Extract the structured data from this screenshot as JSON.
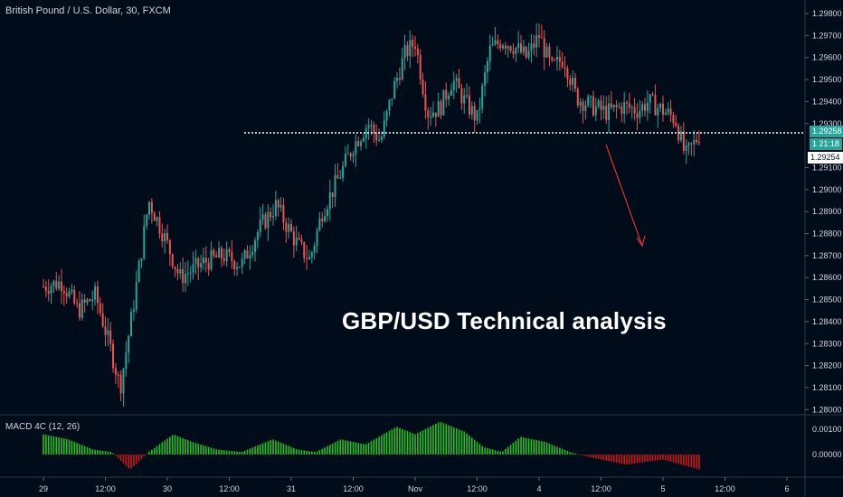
{
  "header": {
    "symbol": "British Pound / U.S. Dollar, 30, FXCM"
  },
  "headline": "GBP/USD Technical analysis",
  "indicator": {
    "label": "MACD 4C (12, 26)",
    "ticks": [
      "0.00100",
      "0.00000"
    ]
  },
  "price_tags": {
    "current": "1.29258",
    "countdown": "1 21:18",
    "prev_close": "1.29254"
  },
  "colors": {
    "background": "#010c1a",
    "up_candle": "#26a69a",
    "down_candle": "#ef5350",
    "macd_positive": "#22c322",
    "macd_negative": "#d01616",
    "arrow": "#e0322c",
    "axis_text": "#d1d4dc"
  },
  "chart_data": {
    "type": "candlestick",
    "title": "British Pound / U.S. Dollar, 30, FXCM",
    "y_axis_ticks": [
      "1.29800",
      "1.29700",
      "1.29600",
      "1.29500",
      "1.29400",
      "1.29300",
      "1.29100",
      "1.29000",
      "1.28900",
      "1.28800",
      "1.28700",
      "1.28600",
      "1.28500",
      "1.28400",
      "1.28300",
      "1.28200",
      "1.28100",
      "1.28000"
    ],
    "x_axis_ticks": [
      "29",
      "12:00",
      "30",
      "12:00",
      "31",
      "12:00",
      "Nov",
      "12:00",
      "4",
      "12:00",
      "5",
      "12:00",
      "6"
    ],
    "ylim": [
      1.2797,
      1.2987
    ],
    "horizontal_level": 1.29258,
    "annotation": "downward arrow projecting toward 1.2873",
    "series": [
      {
        "x_day": 0.0,
        "value": 1.2856
      },
      {
        "x_day": 0.15,
        "value": 1.2858
      },
      {
        "x_day": 0.28,
        "value": 1.2845
      },
      {
        "x_day": 0.42,
        "value": 1.2852
      },
      {
        "x_day": 0.55,
        "value": 1.2826
      },
      {
        "x_day": 0.62,
        "value": 1.281
      },
      {
        "x_day": 0.72,
        "value": 1.2845
      },
      {
        "x_day": 0.85,
        "value": 1.2895
      },
      {
        "x_day": 0.98,
        "value": 1.2878
      },
      {
        "x_day": 1.1,
        "value": 1.286
      },
      {
        "x_day": 1.3,
        "value": 1.2867
      },
      {
        "x_day": 1.45,
        "value": 1.287
      },
      {
        "x_day": 1.6,
        "value": 1.2866
      },
      {
        "x_day": 1.75,
        "value": 1.2883
      },
      {
        "x_day": 1.88,
        "value": 1.2893
      },
      {
        "x_day": 1.95,
        "value": 1.2885
      },
      {
        "x_day": 2.05,
        "value": 1.2875
      },
      {
        "x_day": 2.15,
        "value": 1.2868
      },
      {
        "x_day": 2.25,
        "value": 1.289
      },
      {
        "x_day": 2.38,
        "value": 1.2905
      },
      {
        "x_day": 2.5,
        "value": 1.292
      },
      {
        "x_day": 2.62,
        "value": 1.293
      },
      {
        "x_day": 2.72,
        "value": 1.2922
      },
      {
        "x_day": 2.82,
        "value": 1.2945
      },
      {
        "x_day": 2.92,
        "value": 1.2962
      },
      {
        "x_day": 3.0,
        "value": 1.2967
      },
      {
        "x_day": 3.1,
        "value": 1.2935
      },
      {
        "x_day": 3.2,
        "value": 1.2937
      },
      {
        "x_day": 3.3,
        "value": 1.295
      },
      {
        "x_day": 3.4,
        "value": 1.294
      },
      {
        "x_day": 3.5,
        "value": 1.2932
      },
      {
        "x_day": 3.6,
        "value": 1.2963
      },
      {
        "x_day": 3.7,
        "value": 1.2968
      },
      {
        "x_day": 3.8,
        "value": 1.2965
      },
      {
        "x_day": 3.9,
        "value": 1.296
      },
      {
        "x_day": 4.0,
        "value": 1.297
      },
      {
        "x_day": 4.1,
        "value": 1.2955
      },
      {
        "x_day": 4.2,
        "value": 1.296
      },
      {
        "x_day": 4.3,
        "value": 1.2942
      },
      {
        "x_day": 4.42,
        "value": 1.2938
      },
      {
        "x_day": 4.55,
        "value": 1.2935
      },
      {
        "x_day": 4.68,
        "value": 1.2938
      },
      {
        "x_day": 4.8,
        "value": 1.2936
      },
      {
        "x_day": 4.88,
        "value": 1.294
      },
      {
        "x_day": 5.0,
        "value": 1.2936
      },
      {
        "x_day": 5.1,
        "value": 1.2932
      },
      {
        "x_day": 5.18,
        "value": 1.2915
      },
      {
        "x_day": 5.24,
        "value": 1.292
      },
      {
        "x_day": 5.3,
        "value": 1.29258
      }
    ],
    "macd": [
      {
        "x_day": 0.0,
        "value": 0.0008
      },
      {
        "x_day": 0.2,
        "value": 0.0006
      },
      {
        "x_day": 0.4,
        "value": 0.0002
      },
      {
        "x_day": 0.55,
        "value": 0.0001
      },
      {
        "x_day": 0.7,
        "value": -0.0006
      },
      {
        "x_day": 0.85,
        "value": 0.0001
      },
      {
        "x_day": 1.05,
        "value": 0.0008
      },
      {
        "x_day": 1.2,
        "value": 0.0005
      },
      {
        "x_day": 1.4,
        "value": 0.0002
      },
      {
        "x_day": 1.6,
        "value": 0.0001
      },
      {
        "x_day": 1.85,
        "value": 0.0006
      },
      {
        "x_day": 2.05,
        "value": 0.0002
      },
      {
        "x_day": 2.2,
        "value": 0.0001
      },
      {
        "x_day": 2.4,
        "value": 0.0006
      },
      {
        "x_day": 2.6,
        "value": 0.0004
      },
      {
        "x_day": 2.85,
        "value": 0.0011
      },
      {
        "x_day": 3.0,
        "value": 0.0008
      },
      {
        "x_day": 3.2,
        "value": 0.0013
      },
      {
        "x_day": 3.4,
        "value": 0.0009
      },
      {
        "x_day": 3.55,
        "value": 0.0003
      },
      {
        "x_day": 3.7,
        "value": 0.0001
      },
      {
        "x_day": 3.85,
        "value": 0.0007
      },
      {
        "x_day": 4.05,
        "value": 0.0005
      },
      {
        "x_day": 4.25,
        "value": 0.0001
      },
      {
        "x_day": 4.4,
        "value": -0.0001
      },
      {
        "x_day": 4.7,
        "value": -0.0004
      },
      {
        "x_day": 5.0,
        "value": -0.0002
      },
      {
        "x_day": 5.15,
        "value": -0.0004
      },
      {
        "x_day": 5.3,
        "value": -0.0006
      }
    ]
  }
}
